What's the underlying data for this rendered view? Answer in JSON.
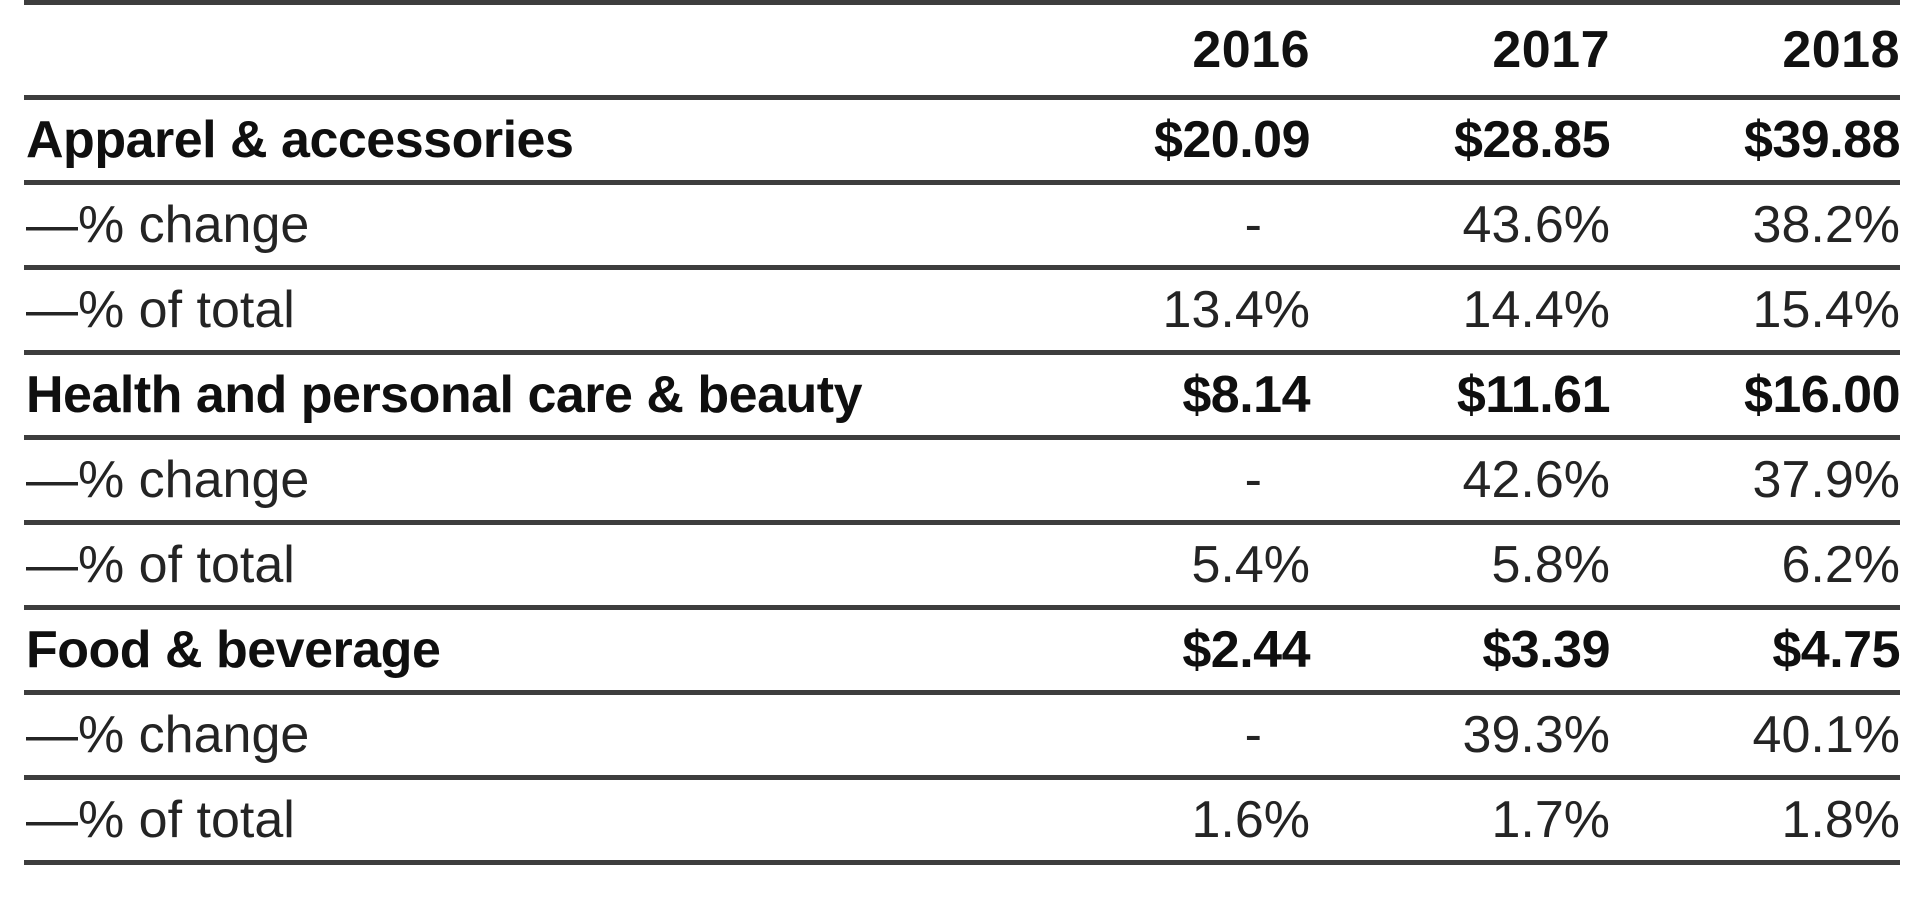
{
  "colors": {
    "background": "#ffffff",
    "rule_line": "#3d3d3d",
    "text": "#242424",
    "bold_text": "#0f0f0f"
  },
  "chart_data": {
    "type": "table",
    "columns": [
      "",
      "2016",
      "2017",
      "2018"
    ],
    "rows": [
      {
        "label": "Apparel & accessories",
        "style": "bold",
        "values": [
          "$20.09",
          "$28.85",
          "$39.88"
        ]
      },
      {
        "label": "—% change",
        "style": "plain",
        "values": [
          "-",
          "43.6%",
          "38.2%"
        ]
      },
      {
        "label": "—% of total",
        "style": "plain",
        "values": [
          "13.4%",
          "14.4%",
          "15.4%"
        ]
      },
      {
        "label": "Health and personal care & beauty",
        "style": "bold",
        "values": [
          "$8.14",
          "$11.61",
          "$16.00"
        ]
      },
      {
        "label": "—% change",
        "style": "plain",
        "values": [
          "-",
          "42.6%",
          "37.9%"
        ]
      },
      {
        "label": "—% of total",
        "style": "plain",
        "values": [
          "5.4%",
          "5.8%",
          "6.2%"
        ]
      },
      {
        "label": "Food & beverage",
        "style": "bold",
        "values": [
          "$2.44",
          "$3.39",
          "$4.75"
        ]
      },
      {
        "label": "—% change",
        "style": "plain",
        "values": [
          "-",
          "39.3%",
          "40.1%"
        ]
      },
      {
        "label": "—% of total",
        "style": "plain",
        "values": [
          "1.6%",
          "1.7%",
          "1.8%"
        ]
      }
    ]
  }
}
